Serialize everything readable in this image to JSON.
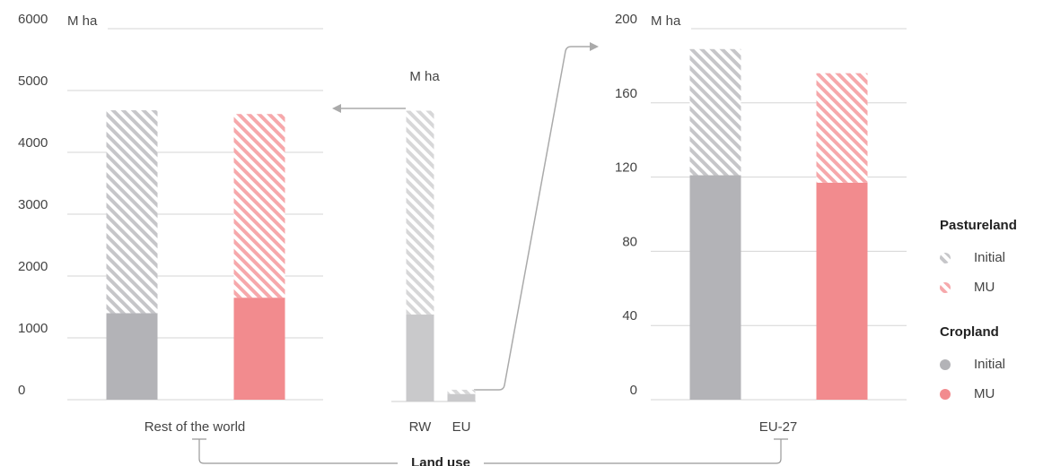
{
  "chart_data": [
    {
      "type": "stacked_bar",
      "unit": "M ha",
      "xlabel": "Rest of the world",
      "ylim": [
        0,
        6000
      ],
      "yticks": [
        0,
        1000,
        2000,
        3000,
        4000,
        5000,
        6000
      ],
      "grid": true,
      "bars": [
        {
          "color": "#b3b3b7",
          "cropland": 1400,
          "pastureland": 3280
        },
        {
          "color": "#f28b8e",
          "cropland": 1650,
          "pastureland": 2970
        }
      ]
    },
    {
      "type": "stacked_bar",
      "unit": "M ha",
      "categories": [
        "RW",
        "EU"
      ],
      "ylim": [
        0,
        6000
      ],
      "grid": false,
      "bars": [
        {
          "color": "#c9c9cb",
          "cropland": 1400,
          "pastureland": 3280
        },
        {
          "color": "#c9c9cb",
          "cropland": 121,
          "pastureland": 68
        }
      ]
    },
    {
      "type": "stacked_bar",
      "unit": "M ha",
      "xlabel": "EU-27",
      "ylim": [
        0,
        200
      ],
      "yticks": [
        0,
        40,
        80,
        120,
        160,
        200
      ],
      "grid": true,
      "bars": [
        {
          "color": "#b3b3b7",
          "cropland": 121,
          "pastureland": 68
        },
        {
          "color": "#f28b8e",
          "cropland": 117,
          "pastureland": 59
        }
      ]
    }
  ],
  "legend": {
    "groups": [
      {
        "title": "Pastureland",
        "items": [
          {
            "label": "Initial",
            "color": "#b3b3b7",
            "pattern": "hatched"
          },
          {
            "label": "MU",
            "color": "#f28b8e",
            "pattern": "hatched"
          }
        ]
      },
      {
        "title": "Cropland",
        "items": [
          {
            "label": "Initial",
            "color": "#b3b3b7",
            "pattern": "solid"
          },
          {
            "label": "MU",
            "color": "#f28b8e",
            "pattern": "solid"
          }
        ]
      }
    ]
  },
  "footer": "Land use"
}
